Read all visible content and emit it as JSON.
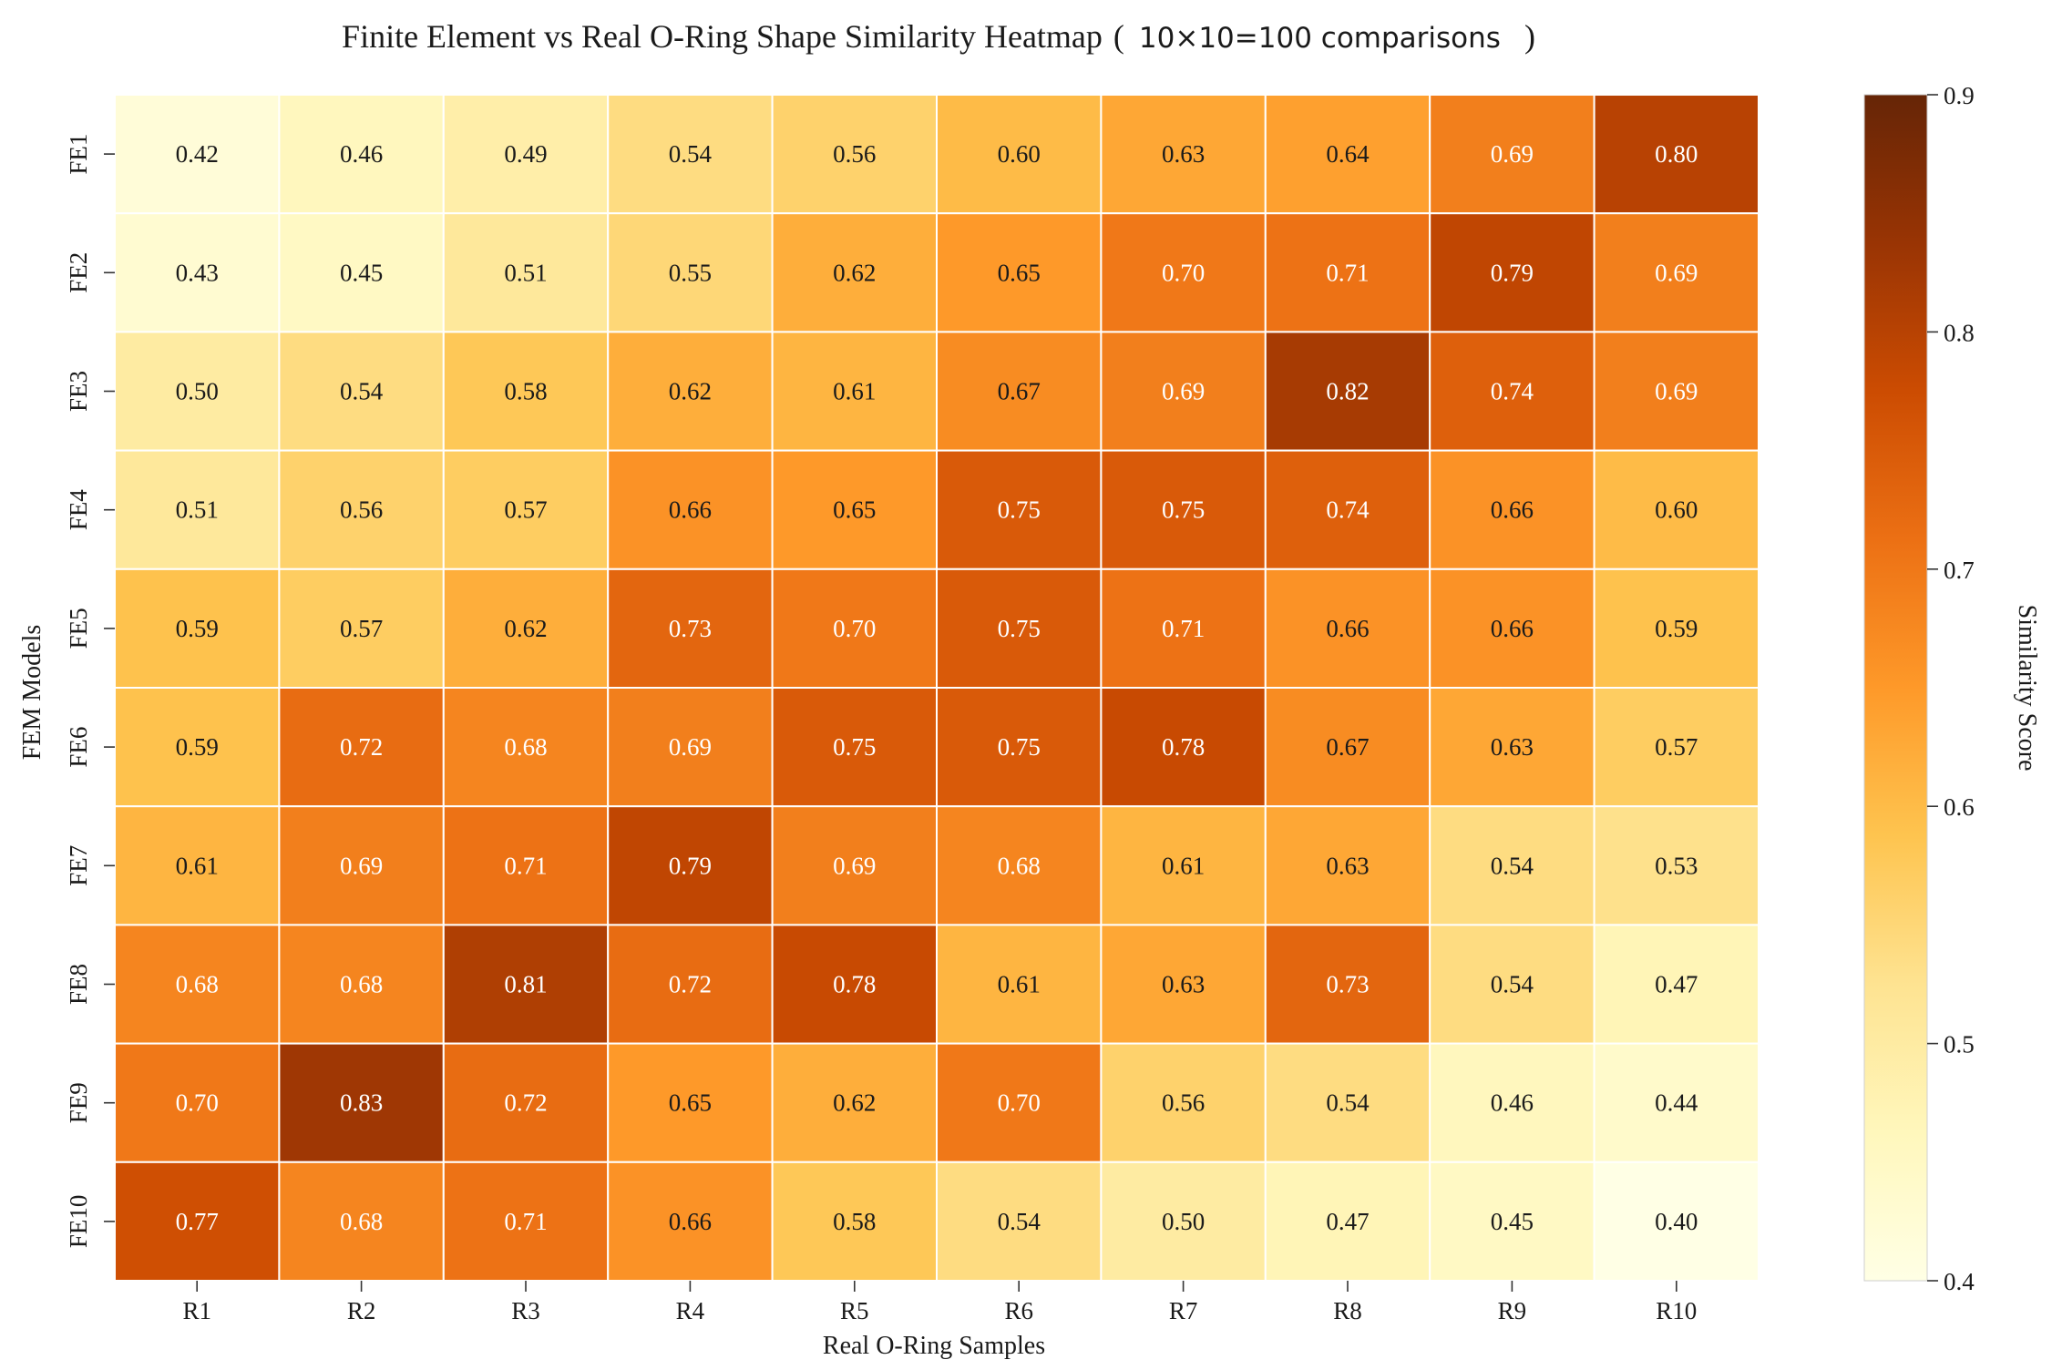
{
  "chart_data": {
    "type": "heatmap",
    "title_main": "Finite Element vs Real O-Ring Shape Similarity Heatmap",
    "title_open": "(",
    "title_sub": "10×10=100 comparisons",
    "title_close": ")",
    "xlabel": "Real O-Ring Samples",
    "ylabel": "FEM Models",
    "colorbar_label": "Similarity Score",
    "x_categories": [
      "R1",
      "R2",
      "R3",
      "R4",
      "R5",
      "R6",
      "R7",
      "R8",
      "R9",
      "R10"
    ],
    "y_categories": [
      "FE1",
      "FE2",
      "FE3",
      "FE4",
      "FE5",
      "FE6",
      "FE7",
      "FE8",
      "FE9",
      "FE10"
    ],
    "values": [
      [
        0.42,
        0.46,
        0.49,
        0.54,
        0.56,
        0.6,
        0.63,
        0.64,
        0.69,
        0.8
      ],
      [
        0.43,
        0.45,
        0.51,
        0.55,
        0.62,
        0.65,
        0.7,
        0.71,
        0.79,
        0.69
      ],
      [
        0.5,
        0.54,
        0.58,
        0.62,
        0.61,
        0.67,
        0.69,
        0.82,
        0.74,
        0.69
      ],
      [
        0.51,
        0.56,
        0.57,
        0.66,
        0.65,
        0.75,
        0.75,
        0.74,
        0.66,
        0.6
      ],
      [
        0.59,
        0.57,
        0.62,
        0.73,
        0.7,
        0.75,
        0.71,
        0.66,
        0.66,
        0.59
      ],
      [
        0.59,
        0.72,
        0.68,
        0.69,
        0.75,
        0.75,
        0.78,
        0.67,
        0.63,
        0.57
      ],
      [
        0.61,
        0.69,
        0.71,
        0.79,
        0.69,
        0.68,
        0.61,
        0.63,
        0.54,
        0.53
      ],
      [
        0.68,
        0.68,
        0.81,
        0.72,
        0.78,
        0.61,
        0.63,
        0.73,
        0.54,
        0.47
      ],
      [
        0.7,
        0.83,
        0.72,
        0.65,
        0.62,
        0.7,
        0.56,
        0.54,
        0.46,
        0.44
      ],
      [
        0.77,
        0.68,
        0.71,
        0.66,
        0.58,
        0.54,
        0.5,
        0.47,
        0.45,
        0.4
      ]
    ],
    "vmin": 0.4,
    "vmax": 0.9,
    "colorbar_ticks": [
      "0.4",
      "0.5",
      "0.6",
      "0.7",
      "0.8",
      "0.9"
    ],
    "colormap": "YlOrBr",
    "colormap_stops": [
      "#ffffe5",
      "#fff7bc",
      "#fee391",
      "#fec44f",
      "#fe9929",
      "#ec7014",
      "#cc4c02",
      "#993404",
      "#662506"
    ],
    "label_dark_text": "#1a1a1a",
    "label_light_text": "#ffffff"
  }
}
